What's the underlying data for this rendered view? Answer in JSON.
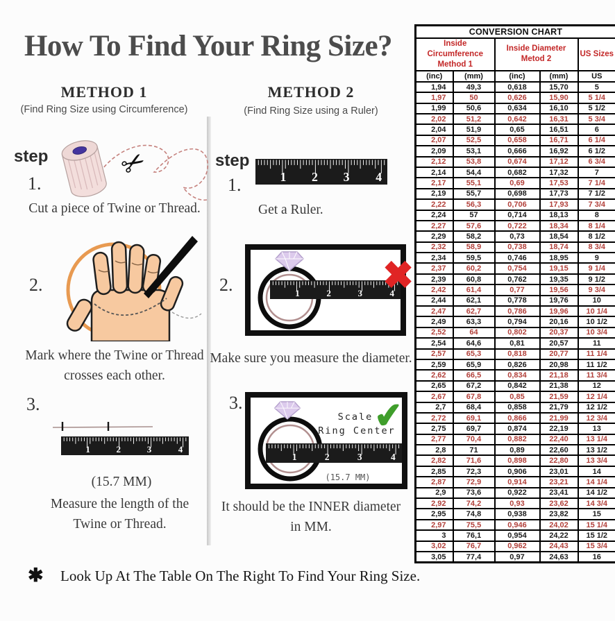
{
  "title": "How To Find Your Ring Size?",
  "methods": {
    "method1": {
      "heading": "METHOD 1",
      "subheading": "(Find Ring Size using Circumference)",
      "step_label": "step",
      "steps": [
        {
          "num": "1.",
          "line1": "Cut a piece of  Twine or Thread."
        },
        {
          "num": "2.",
          "line1": "Mark where the Twine or Thread",
          "line2": "crosses each other."
        },
        {
          "num": "3.",
          "note": "(15.7 MM)",
          "line1": "Measure the length of the",
          "line2": "Twine or Thread."
        }
      ]
    },
    "method2": {
      "heading": "METHOD 2",
      "subheading": "(Find Ring Size using a Ruler)",
      "step_label": "step",
      "steps": [
        {
          "num": "1.",
          "line1": "Get a Ruler."
        },
        {
          "num": "2.",
          "line1": "Make sure you measure the diameter."
        },
        {
          "num": "3.",
          "line1": "It should be the INNER diameter",
          "line2": "in MM.",
          "scale_line1": "Scale",
          "scale_line2": "Ring Center",
          "note": "(15.7 MM)"
        }
      ]
    }
  },
  "ruler_numbers": [
    "1",
    "2",
    "3",
    "4"
  ],
  "icons": {
    "scissors": "✂",
    "x_mark": "✖",
    "check_mark": "✔",
    "asterisk": "✱"
  },
  "footnote": {
    "bullet": "✱",
    "text": "Look Up At The Table On The Right To Find Your Ring Size."
  },
  "conversion_chart": {
    "title": "CONVERSION CHART",
    "groups": [
      {
        "line1": "Inside Circumference",
        "line2": "Method 1"
      },
      {
        "line1": "Inside Diameter",
        "line2": "Metod 2"
      },
      {
        "line1": "US Sizes"
      }
    ],
    "sub_headers": [
      "(inc)",
      "(mm)",
      "(inc)",
      "(mm)",
      "US"
    ],
    "rows": [
      [
        "1,94",
        "49,3",
        "0,618",
        "15,70",
        "5"
      ],
      [
        "1,97",
        "50",
        "0,626",
        "15,90",
        "5 1/4"
      ],
      [
        "1,99",
        "50,6",
        "0,634",
        "16,10",
        "5 1/2"
      ],
      [
        "2,02",
        "51,2",
        "0,642",
        "16,31",
        "5 3/4"
      ],
      [
        "2,04",
        "51,9",
        "0,65",
        "16,51",
        "6"
      ],
      [
        "2,07",
        "52,5",
        "0,658",
        "16,71",
        "6 1/4"
      ],
      [
        "2,09",
        "53,1",
        "0,666",
        "16,92",
        "6 1/2"
      ],
      [
        "2,12",
        "53,8",
        "0,674",
        "17,12",
        "6 3/4"
      ],
      [
        "2,14",
        "54,4",
        "0,682",
        "17,32",
        "7"
      ],
      [
        "2,17",
        "55,1",
        "0,69",
        "17,53",
        "7 1/4"
      ],
      [
        "2,19",
        "55,7",
        "0,698",
        "17,73",
        "7 1/2"
      ],
      [
        "2,22",
        "56,3",
        "0,706",
        "17,93",
        "7 3/4"
      ],
      [
        "2,24",
        "57",
        "0,714",
        "18,13",
        "8"
      ],
      [
        "2,27",
        "57,6",
        "0,722",
        "18,34",
        "8 1/4"
      ],
      [
        "2,29",
        "58,2",
        "0,73",
        "18,54",
        "8 1/2"
      ],
      [
        "2,32",
        "58,9",
        "0,738",
        "18,74",
        "8 3/4"
      ],
      [
        "2,34",
        "59,5",
        "0,746",
        "18,95",
        "9"
      ],
      [
        "2,37",
        "60,2",
        "0,754",
        "19,15",
        "9 1/4"
      ],
      [
        "2,39",
        "60,8",
        "0,762",
        "19,35",
        "9 1/2"
      ],
      [
        "2,42",
        "61,4",
        "0,77",
        "19,56",
        "9 3/4"
      ],
      [
        "2,44",
        "62,1",
        "0,778",
        "19,76",
        "10"
      ],
      [
        "2,47",
        "62,7",
        "0,786",
        "19,96",
        "10 1/4"
      ],
      [
        "2,49",
        "63,3",
        "0,794",
        "20,16",
        "10 1/2"
      ],
      [
        "2,52",
        "64",
        "0,802",
        "20,37",
        "10 3/4"
      ],
      [
        "2,54",
        "64,6",
        "0,81",
        "20,57",
        "11"
      ],
      [
        "2,57",
        "65,3",
        "0,818",
        "20,77",
        "11 1/4"
      ],
      [
        "2,59",
        "65,9",
        "0,826",
        "20,98",
        "11 1/2"
      ],
      [
        "2,62",
        "66,5",
        "0,834",
        "21,18",
        "11 3/4"
      ],
      [
        "2,65",
        "67,2",
        "0,842",
        "21,38",
        "12"
      ],
      [
        "2,67",
        "67,8",
        "0,85",
        "21,59",
        "12 1/4"
      ],
      [
        "2,7",
        "68,4",
        "0,858",
        "21,79",
        "12 1/2"
      ],
      [
        "2,72",
        "69,1",
        "0,866",
        "21,99",
        "12 3/4"
      ],
      [
        "2,75",
        "69,7",
        "0,874",
        "22,19",
        "13"
      ],
      [
        "2,77",
        "70,4",
        "0,882",
        "22,40",
        "13 1/4"
      ],
      [
        "2,8",
        "71",
        "0,89",
        "22,60",
        "13 1/2"
      ],
      [
        "2,82",
        "71,6",
        "0,898",
        "22,80",
        "13 3/4"
      ],
      [
        "2,85",
        "72,3",
        "0,906",
        "23,01",
        "14"
      ],
      [
        "2,87",
        "72,9",
        "0,914",
        "23,21",
        "14 1/4"
      ],
      [
        "2,9",
        "73,6",
        "0,922",
        "23,41",
        "14 1/2"
      ],
      [
        "2,92",
        "74,2",
        "0,93",
        "23,62",
        "14 3/4"
      ],
      [
        "2,95",
        "74,8",
        "0,938",
        "23,82",
        "15"
      ],
      [
        "2,97",
        "75,5",
        "0,946",
        "24,02",
        "15 1/4"
      ],
      [
        "3",
        "76,1",
        "0,954",
        "24,22",
        "15 1/2"
      ],
      [
        "3,02",
        "76,7",
        "0,962",
        "24,43",
        "15 3/4"
      ],
      [
        "3,05",
        "77,4",
        "0,97",
        "24,63",
        "16"
      ]
    ]
  },
  "colors": {
    "header_red": "#c32727",
    "row_red": "#b2403a",
    "x_red": "#e02424",
    "check_green": "#3f9e2b",
    "ruler_black": "#1b1b1b",
    "hand_skin": "#f7c9a0",
    "circle_orange": "#e68f3e",
    "diamond_purple": "#dccaec",
    "twine_pink": "#f3dedc",
    "spool_hole_blue": "#44349e"
  }
}
